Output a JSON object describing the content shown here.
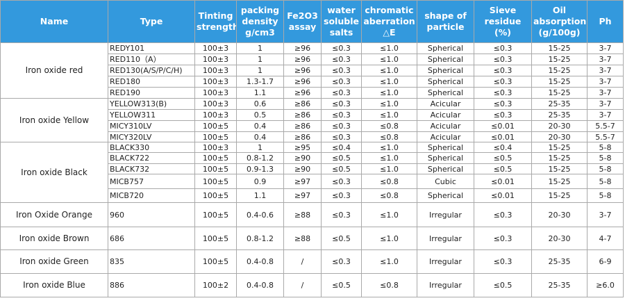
{
  "table": {
    "header": [
      "Name",
      "Type",
      "Tinting strength",
      "packing density g/cm3",
      "Fe2O3 assay",
      "water soluble salts",
      "chromatic aberration △E",
      "shape of particle",
      "Sieve residue (%)",
      "Oil absorption (g/100g)",
      "Ph"
    ],
    "groups": [
      {
        "name": "Iron oxide red",
        "rows": [
          [
            "REDY101",
            "100±3",
            "1",
            "≥96",
            "≤0.3",
            "≤1.0",
            "Spherical",
            "≤0.3",
            "15-25",
            "3-7"
          ],
          [
            "RED110（A）",
            "100±3",
            "1",
            "≥96",
            "≤0.3",
            "≤1.0",
            "Spherical",
            "≤0.3",
            "15-25",
            "3-7"
          ],
          [
            "RED130(A/S/P/C/H)",
            "100±3",
            "1",
            "≥96",
            "≤0.3",
            "≤1.0",
            "Spherical",
            "≤0.3",
            "15-25",
            "3-7"
          ],
          [
            "RED180",
            "100±3",
            "1.3-1.7",
            "≥96",
            "≤0.3",
            "≤1.0",
            "Spherical",
            "≤0.3",
            "15-25",
            "3-7"
          ],
          [
            "RED190",
            "100±3",
            "1.1",
            "≥96",
            "≤0.3",
            "≤1.0",
            "Spherical",
            "≤0.3",
            "15-25",
            "3-7"
          ]
        ]
      },
      {
        "name": "Iron oxide Yellow",
        "rows": [
          [
            "YELLOW313(B)",
            "100±3",
            "0.6",
            "≥86",
            "≤0.3",
            "≤1.0",
            "Acicular",
            "≤0.3",
            "25-35",
            "3-7"
          ],
          [
            "YELLOW311",
            "100±3",
            "0.5",
            "≥86",
            "≤0.3",
            "≤1.0",
            "Acicular",
            "≤0.3",
            "25-35",
            "3-7"
          ],
          [
            "MICY310LV",
            "100±5",
            "0.4",
            "≥86",
            "≤0.3",
            "≤0.8",
            "Acicular",
            "≤0.01",
            "20-30",
            "5.5-7"
          ],
          [
            "MICY320LV",
            "100±5",
            "0.4",
            "≥86",
            "≤0.3",
            "≤0.8",
            "Acicular",
            "≤0.01",
            "20-30",
            "5.5-7"
          ]
        ]
      },
      {
        "name": "Iron oxide Black",
        "rows": [
          [
            "BLACK330",
            "100±3",
            "1",
            "≥95",
            "≤0.4",
            "≤1.0",
            "Spherical",
            "≤0.4",
            "15-25",
            "5-8"
          ],
          [
            "BLACK722",
            "100±5",
            "0.8-1.2",
            "≥90",
            "≤0.5",
            "≤1.0",
            "Spherical",
            "≤0.5",
            "15-25",
            "5-8"
          ],
          [
            "BLACK732",
            "100±5",
            "0.9-1.3",
            "≥90",
            "≤0.5",
            "≤1.0",
            "Spherical",
            "≤0.5",
            "15-25",
            "5-8"
          ],
          [
            "MICB757",
            "100±5",
            "0.9",
            "≥97",
            "≤0.3",
            "≤0.8",
            "Cubic",
            "≤0.01",
            "15-25",
            "5-8"
          ],
          [
            "MICB720",
            "100±5",
            "1.1",
            "≥97",
            "≤0.3",
            "≤0.8",
            "Spherical",
            "≤0.01",
            "15-25",
            "5-8"
          ]
        ]
      },
      {
        "name": "Iron Oxide Orange",
        "rows": [
          [
            "960",
            "100±5",
            "0.4-0.6",
            "≥88",
            "≤0.3",
            "≤1.0",
            "Irregular",
            "≤0.3",
            "20-30",
            "3-7"
          ]
        ]
      },
      {
        "name": "Iron oxide Brown",
        "rows": [
          [
            "686",
            "100±5",
            "0.8-1.2",
            "≥88",
            "≤0.5",
            "≤1.0",
            "Irregular",
            "≤0.3",
            "20-30",
            "4-7"
          ]
        ]
      },
      {
        "name": "Iron oxide Green",
        "rows": [
          [
            "835",
            "100±5",
            "0.4-0.8",
            "/",
            "≤0.3",
            "≤1.0",
            "Irregular",
            "≤0.3",
            "25-35",
            "6-9"
          ]
        ]
      },
      {
        "name": "Iron oxide Blue",
        "rows": [
          [
            "886",
            "100±2",
            "0.4-0.8",
            "/",
            "≤0.5",
            "≤0.8",
            "Irregular",
            "≤0.5",
            "25-35",
            "≥6.0"
          ]
        ]
      }
    ]
  }
}
